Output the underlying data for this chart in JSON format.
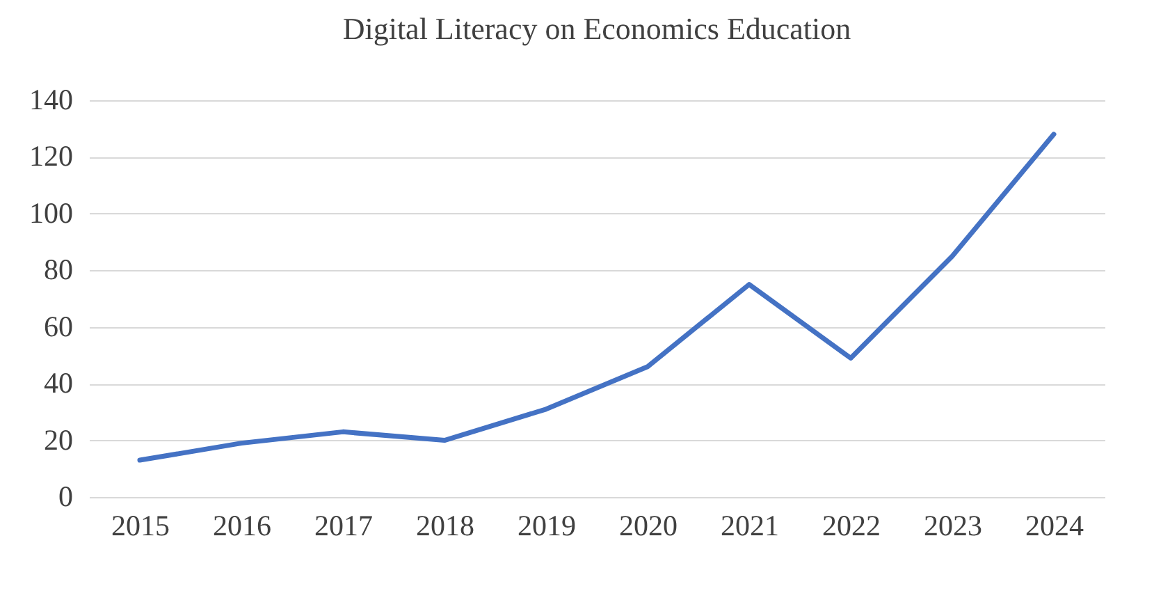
{
  "chart_data": {
    "type": "line",
    "title": "Digital Literacy on Economics Education",
    "categories": [
      "2015",
      "2016",
      "2017",
      "2018",
      "2019",
      "2020",
      "2021",
      "2022",
      "2023",
      "2024"
    ],
    "series": [
      {
        "color": "#4472c4",
        "values": [
          13,
          19,
          23,
          20,
          31,
          46,
          75,
          49,
          85,
          128
        ]
      }
    ],
    "ylim": [
      0,
      140
    ],
    "yticks": [
      0,
      20,
      40,
      60,
      80,
      100,
      120,
      140
    ],
    "grid": "y",
    "marker": "none"
  }
}
